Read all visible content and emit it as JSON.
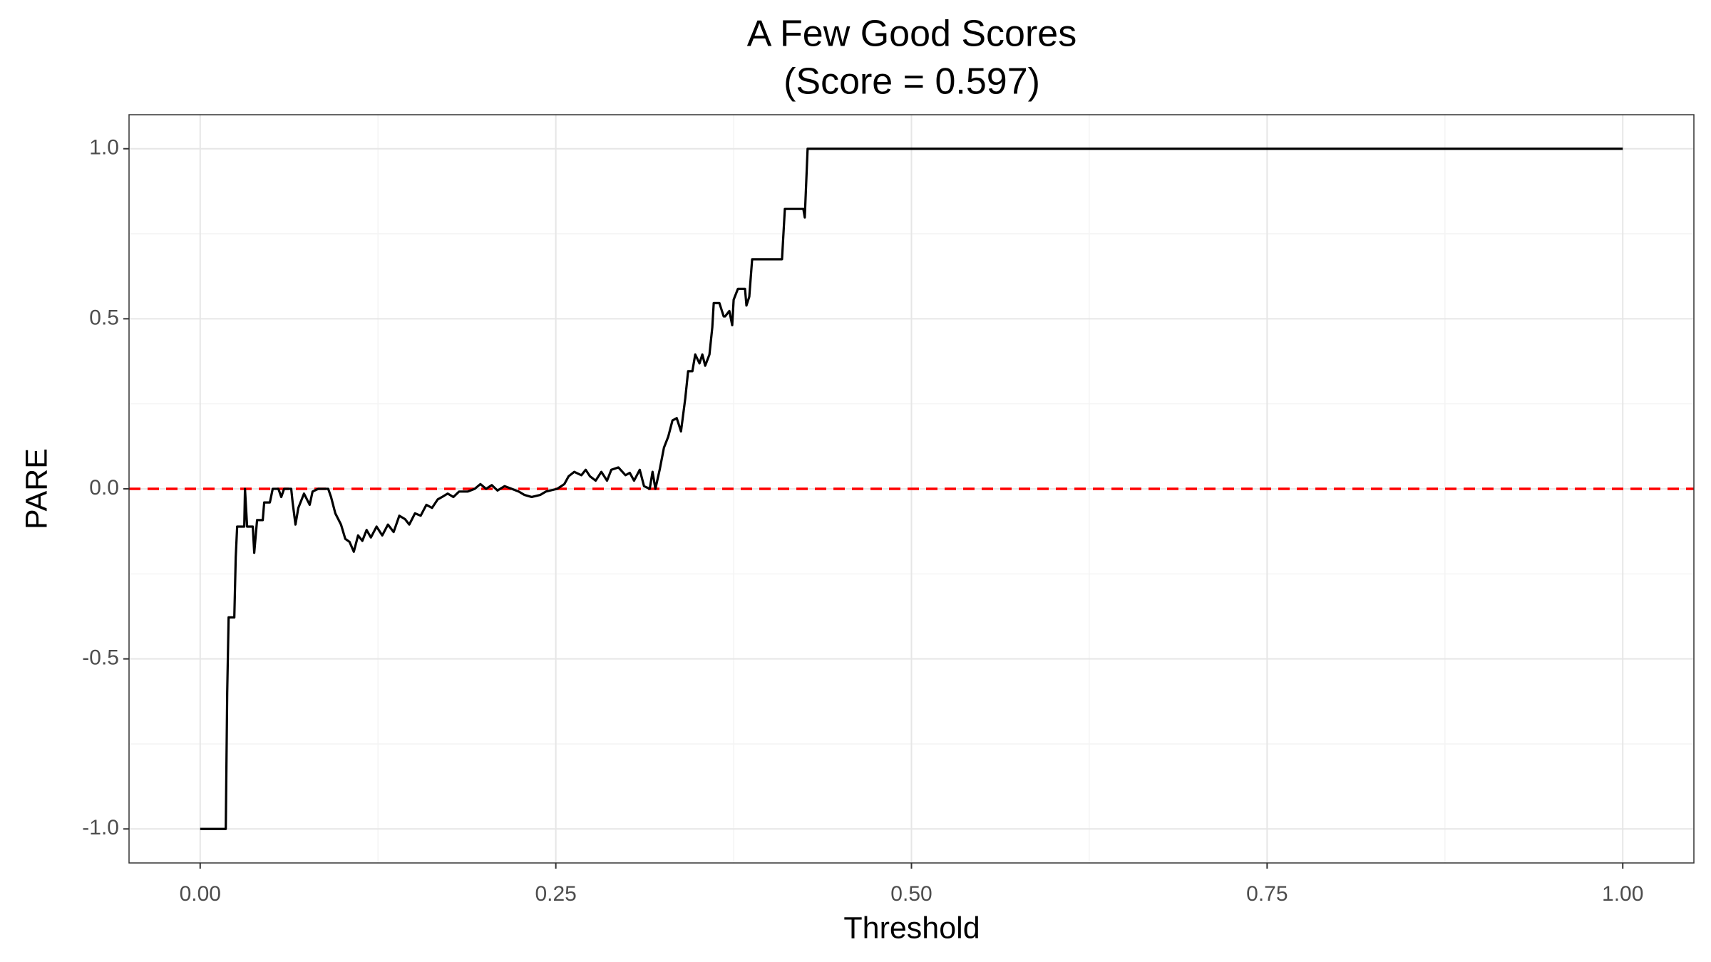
{
  "chart_data": {
    "type": "line",
    "title": "A Few Good Scores",
    "subtitle": "(Score = 0.597)",
    "x_label": "Threshold",
    "y_label": "PARE",
    "xlim": [
      -0.05,
      1.05
    ],
    "ylim": [
      -1.1,
      1.1
    ],
    "xticks": [
      {
        "value": 0,
        "label": "0.00"
      },
      {
        "value": 0.25,
        "label": "0.25"
      },
      {
        "value": 0.5,
        "label": "0.50"
      },
      {
        "value": 0.75,
        "label": "0.75"
      },
      {
        "value": 1,
        "label": "1.00"
      }
    ],
    "yticks": [
      {
        "value": -1,
        "label": "-1.0"
      },
      {
        "value": -0.5,
        "label": "-0.5"
      },
      {
        "value": 0,
        "label": "0.0"
      },
      {
        "value": 0.5,
        "label": "0.5"
      },
      {
        "value": 1,
        "label": "1.0"
      }
    ],
    "x_minor_ticks": [
      0.125,
      0.375,
      0.625,
      0.875
    ],
    "y_minor_ticks": [
      -0.75,
      -0.25,
      0.25,
      0.75
    ],
    "grid": true,
    "reference_line": {
      "y": 0,
      "color": "#ff0000",
      "dashed": true
    },
    "series": [
      {
        "color": "#000000",
        "x": [
          0,
          0.018,
          0.019,
          0.02,
          0.024,
          0.025,
          0.026,
          0.031,
          0.0315,
          0.033,
          0.037,
          0.038,
          0.04,
          0.044,
          0.045,
          0.049,
          0.051,
          0.055,
          0.057,
          0.059,
          0.064,
          0.065,
          0.067,
          0.069,
          0.073,
          0.077,
          0.079,
          0.083,
          0.09,
          0.092,
          0.095,
          0.099,
          0.102,
          0.105,
          0.108,
          0.111,
          0.114,
          0.117,
          0.12,
          0.124,
          0.128,
          0.132,
          0.136,
          0.14,
          0.144,
          0.147,
          0.151,
          0.155,
          0.159,
          0.163,
          0.167,
          0.17,
          0.174,
          0.178,
          0.182,
          0.188,
          0.193,
          0.197,
          0.201,
          0.205,
          0.209,
          0.214,
          0.219,
          0.224,
          0.228,
          0.233,
          0.239,
          0.243,
          0.251,
          0.256,
          0.259,
          0.263,
          0.268,
          0.271,
          0.274,
          0.278,
          0.282,
          0.286,
          0.289,
          0.294,
          0.299,
          0.302,
          0.305,
          0.309,
          0.312,
          0.316,
          0.318,
          0.32,
          0.323,
          0.326,
          0.329,
          0.332,
          0.335,
          0.338,
          0.341,
          0.343,
          0.346,
          0.348,
          0.351,
          0.353,
          0.355,
          0.358,
          0.36,
          0.361,
          0.365,
          0.368,
          0.369,
          0.372,
          0.374,
          0.375,
          0.378,
          0.383,
          0.384,
          0.386,
          0.388,
          0.409,
          0.411,
          0.424,
          0.425,
          0.427,
          1
        ],
        "values": [
          -1,
          -1,
          -0.6,
          -0.378,
          -0.378,
          -0.201,
          -0.111,
          -0.111,
          0,
          -0.111,
          -0.111,
          -0.188,
          -0.092,
          -0.092,
          -0.04,
          -0.04,
          0,
          0,
          -0.024,
          0,
          0,
          -0.04,
          -0.105,
          -0.056,
          -0.014,
          -0.047,
          -0.008,
          0,
          0,
          -0.024,
          -0.072,
          -0.105,
          -0.147,
          -0.156,
          -0.185,
          -0.137,
          -0.153,
          -0.121,
          -0.143,
          -0.111,
          -0.137,
          -0.105,
          -0.127,
          -0.079,
          -0.089,
          -0.105,
          -0.072,
          -0.079,
          -0.047,
          -0.056,
          -0.031,
          -0.024,
          -0.014,
          -0.024,
          -0.008,
          -0.008,
          0,
          0.014,
          0,
          0.011,
          -0.005,
          0.008,
          0,
          -0.008,
          -0.018,
          -0.024,
          -0.018,
          -0.008,
          0,
          0.014,
          0.037,
          0.05,
          0.04,
          0.056,
          0.037,
          0.024,
          0.05,
          0.024,
          0.056,
          0.063,
          0.04,
          0.047,
          0.024,
          0.056,
          0.008,
          0,
          0.05,
          0,
          0.056,
          0.121,
          0.153,
          0.201,
          0.208,
          0.169,
          0.266,
          0.346,
          0.346,
          0.395,
          0.369,
          0.395,
          0.362,
          0.395,
          0.475,
          0.546,
          0.546,
          0.507,
          0.507,
          0.523,
          0.481,
          0.556,
          0.588,
          0.588,
          0.539,
          0.565,
          0.675,
          0.675,
          0.823,
          0.823,
          0.798,
          1,
          1
        ]
      }
    ]
  }
}
